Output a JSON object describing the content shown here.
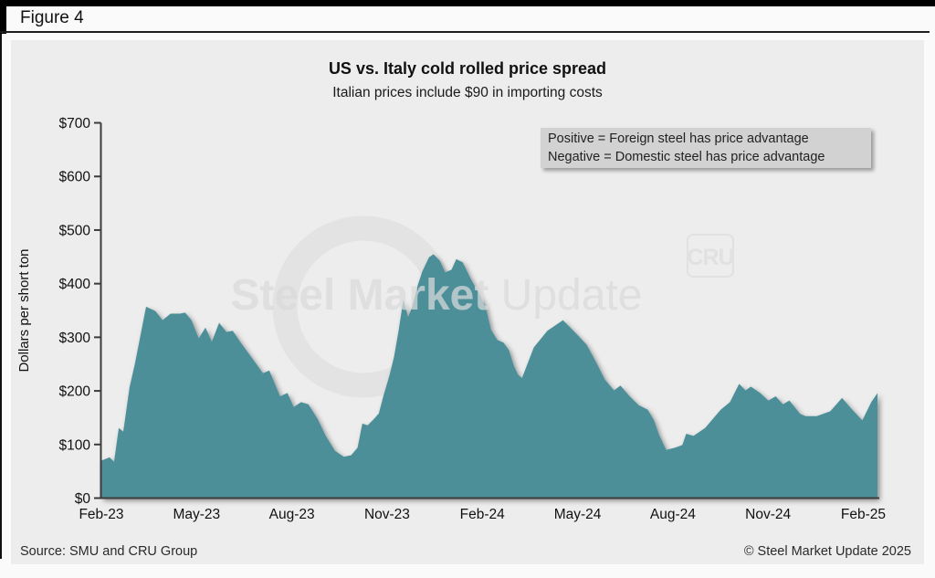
{
  "figure_label": "Figure 4",
  "chart_data": {
    "type": "area",
    "title": "US vs. Italy cold rolled price spread",
    "subtitle": "Italian prices include $90 in importing costs",
    "ylabel": "Dollars per short ton",
    "ylim": [
      0,
      700
    ],
    "yticks": [
      700,
      600,
      500,
      400,
      300,
      200,
      100,
      0
    ],
    "ytick_prefix": "$",
    "xticks": [
      "Feb-23",
      "May-23",
      "Aug-23",
      "Nov-23",
      "Feb-24",
      "May-24",
      "Aug-24",
      "Nov-24",
      "Feb-25"
    ],
    "xtick_month_offsets": [
      0,
      3,
      6,
      9,
      12,
      15,
      18,
      21,
      24
    ],
    "grid": false,
    "legend_position": "none",
    "annotation_line1": "Positive = Foreign steel has price advantage",
    "annotation_line2": "Negative = Domestic steel has price advantage",
    "series": [
      {
        "color": "#4e8f99",
        "x_unit": "months-after-Feb-2023",
        "y_unit": "dollars-per-short-ton",
        "points": [
          [
            0,
            70
          ],
          [
            0.26,
            76
          ],
          [
            0.4,
            68
          ],
          [
            0.55,
            131
          ],
          [
            0.69,
            124
          ],
          [
            0.89,
            207
          ],
          [
            1.06,
            252
          ],
          [
            1.41,
            357
          ],
          [
            1.7,
            349
          ],
          [
            1.93,
            332
          ],
          [
            2.18,
            344
          ],
          [
            2.47,
            344
          ],
          [
            2.64,
            346
          ],
          [
            2.84,
            332
          ],
          [
            3.07,
            298
          ],
          [
            3.28,
            318
          ],
          [
            3.48,
            292
          ],
          [
            3.71,
            327
          ],
          [
            3.94,
            310
          ],
          [
            4.14,
            312
          ],
          [
            4.37,
            292
          ],
          [
            4.86,
            252
          ],
          [
            5.09,
            233
          ],
          [
            5.29,
            238
          ],
          [
            5.63,
            190
          ],
          [
            5.86,
            196
          ],
          [
            6.06,
            170
          ],
          [
            6.29,
            179
          ],
          [
            6.52,
            175
          ],
          [
            6.81,
            148
          ],
          [
            7.07,
            116
          ],
          [
            7.36,
            88
          ],
          [
            7.64,
            77
          ],
          [
            7.87,
            80
          ],
          [
            8.07,
            94
          ],
          [
            8.22,
            139
          ],
          [
            8.39,
            136
          ],
          [
            8.59,
            148
          ],
          [
            8.74,
            158
          ],
          [
            8.88,
            190
          ],
          [
            9.08,
            230
          ],
          [
            9.22,
            264
          ],
          [
            9.37,
            315
          ],
          [
            9.51,
            370
          ],
          [
            9.66,
            338
          ],
          [
            9.8,
            358
          ],
          [
            9.97,
            398
          ],
          [
            10.11,
            423
          ],
          [
            10.32,
            449
          ],
          [
            10.46,
            455
          ],
          [
            10.66,
            443
          ],
          [
            10.83,
            421
          ],
          [
            11.03,
            426
          ],
          [
            11.18,
            446
          ],
          [
            11.38,
            440
          ],
          [
            11.61,
            412
          ],
          [
            11.84,
            387
          ],
          [
            12.1,
            358
          ],
          [
            12.27,
            315
          ],
          [
            12.47,
            295
          ],
          [
            12.67,
            290
          ],
          [
            12.84,
            276
          ],
          [
            12.99,
            247
          ],
          [
            13.13,
            230
          ],
          [
            13.25,
            224
          ],
          [
            13.62,
            281
          ],
          [
            14.05,
            312
          ],
          [
            14.54,
            332
          ],
          [
            14.97,
            306
          ],
          [
            15.29,
            286
          ],
          [
            15.57,
            255
          ],
          [
            15.86,
            221
          ],
          [
            16.15,
            201
          ],
          [
            16.35,
            210
          ],
          [
            16.64,
            190
          ],
          [
            16.93,
            173
          ],
          [
            17.21,
            165
          ],
          [
            17.41,
            145
          ],
          [
            17.56,
            119
          ],
          [
            17.79,
            90
          ],
          [
            18.07,
            94
          ],
          [
            18.3,
            99
          ],
          [
            18.42,
            120
          ],
          [
            18.65,
            116
          ],
          [
            19.02,
            131
          ],
          [
            19.22,
            145
          ],
          [
            19.51,
            165
          ],
          [
            19.8,
            179
          ],
          [
            20.09,
            213
          ],
          [
            20.29,
            201
          ],
          [
            20.46,
            208
          ],
          [
            20.75,
            196
          ],
          [
            21.01,
            182
          ],
          [
            21.24,
            190
          ],
          [
            21.47,
            175
          ],
          [
            21.67,
            182
          ],
          [
            22.01,
            157
          ],
          [
            22.18,
            153
          ],
          [
            22.53,
            153
          ],
          [
            22.96,
            162
          ],
          [
            23.33,
            187
          ],
          [
            23.62,
            167
          ],
          [
            23.97,
            145
          ],
          [
            24.25,
            179
          ],
          [
            24.45,
            196
          ]
        ]
      }
    ]
  },
  "watermark": {
    "bold_part": "Steel Market",
    "light_part": " Update",
    "badge": "CRU"
  },
  "footer": {
    "source": "Source: SMU and CRU Group",
    "copyright": "© Steel Market Update 2025"
  }
}
